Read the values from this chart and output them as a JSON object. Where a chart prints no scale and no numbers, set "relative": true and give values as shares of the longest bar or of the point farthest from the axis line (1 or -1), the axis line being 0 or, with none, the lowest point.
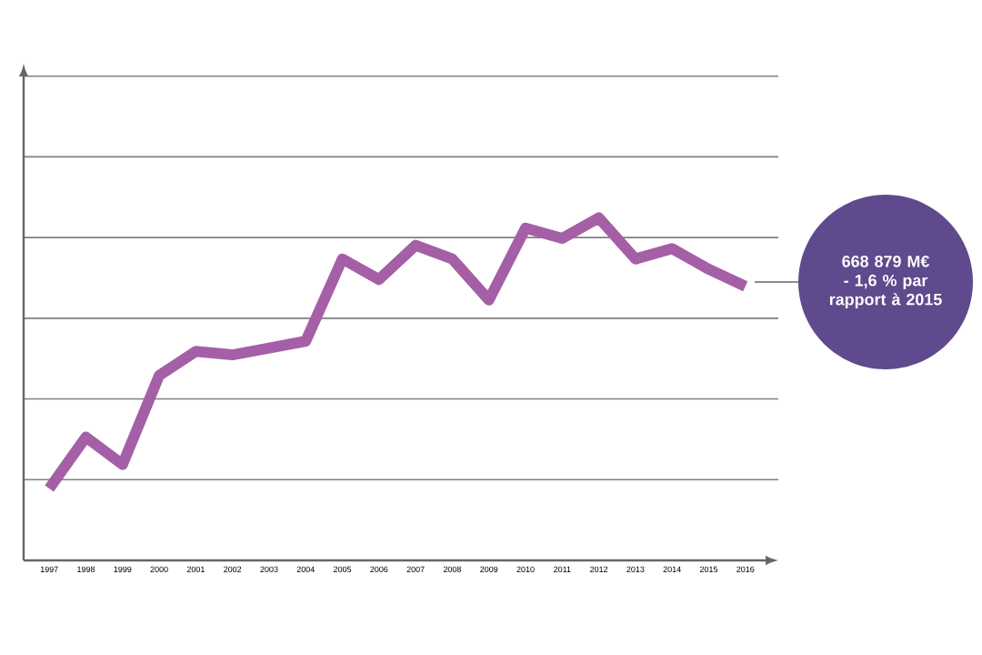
{
  "chart_data": {
    "type": "line",
    "relative": true,
    "grid": "y",
    "marker": "none",
    "line_style": "solid",
    "categories": [
      "1997",
      "1998",
      "1999",
      "2000",
      "2001",
      "2002",
      "2003",
      "2004",
      "2005",
      "2006",
      "2007",
      "2008",
      "2009",
      "2010",
      "2011",
      "2012",
      "2013",
      "2014",
      "2015",
      "2016"
    ],
    "series": [
      {
        "color": "#a45fa6",
        "values": [
          0.21,
          0.36,
          0.28,
          0.54,
          0.61,
          0.6,
          0.62,
          0.64,
          0.88,
          0.82,
          0.92,
          0.88,
          0.76,
          0.97,
          0.94,
          1,
          0.88,
          0.91,
          0.85,
          0.8
        ]
      }
    ],
    "annotations": [
      "668 879 M€ - 1,6 % par rapport à 2015"
    ]
  }
}
